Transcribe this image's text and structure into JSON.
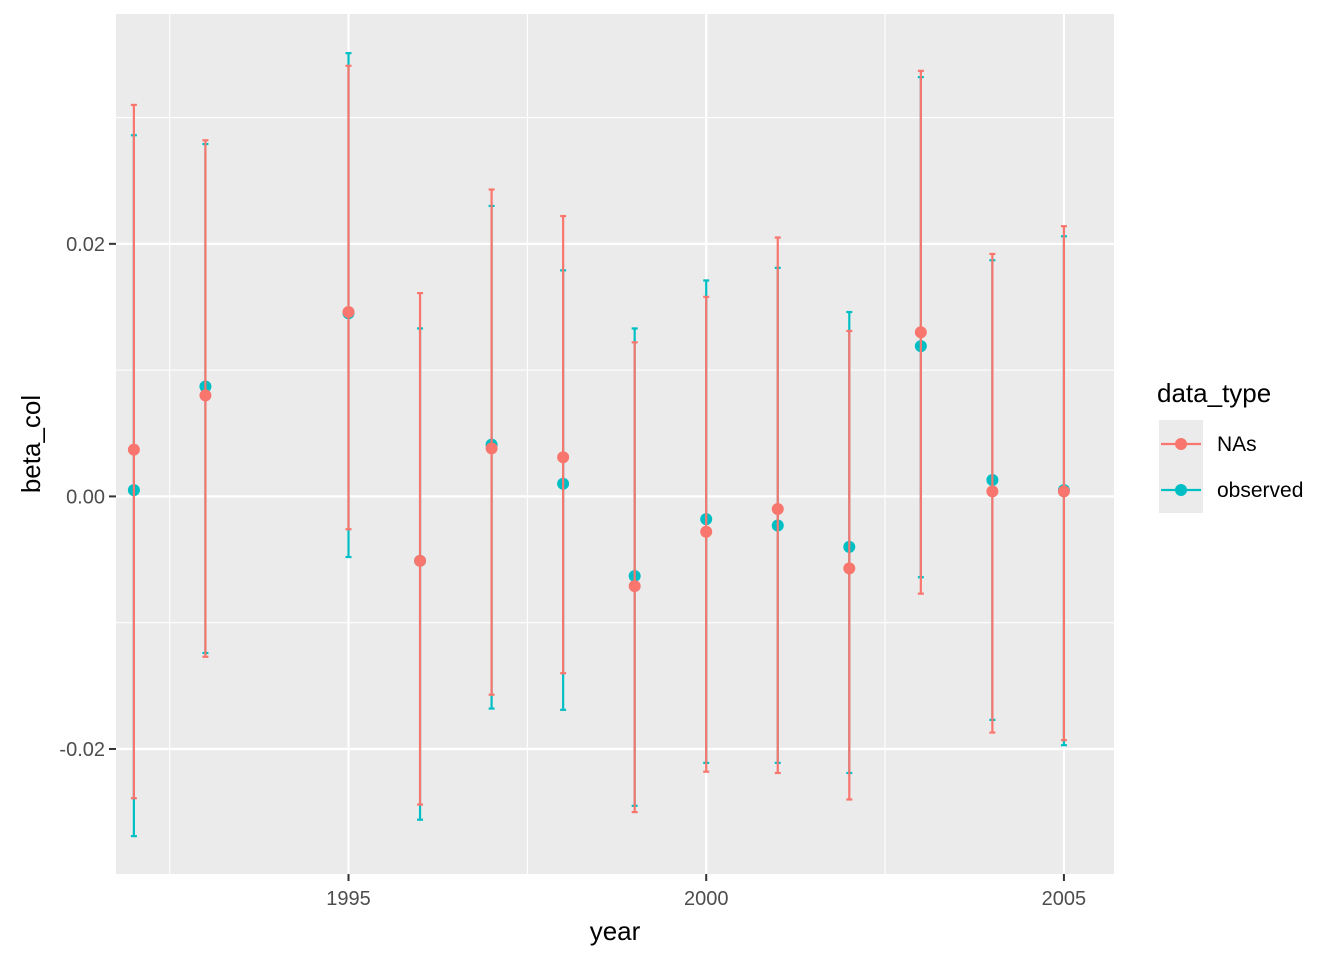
{
  "chart_data": {
    "type": "scatter",
    "title": "",
    "xlabel": "year",
    "ylabel": "beta_col",
    "xlim": [
      1991.75,
      2005.7
    ],
    "ylim": [
      -0.0299,
      0.0382
    ],
    "x_ticks": [
      1995,
      2000,
      2005
    ],
    "x_tick_labels": [
      "1995",
      "2000",
      "2005"
    ],
    "y_ticks": [
      -0.02,
      0.0,
      0.02
    ],
    "y_tick_labels": [
      "-0.02",
      "0.00",
      "0.02"
    ],
    "grid": true,
    "legend": {
      "title": "data_type",
      "placement": "right",
      "entries": [
        "NAs",
        "observed"
      ]
    },
    "series": [
      {
        "name": "observed",
        "color": "#00BFC4",
        "points": [
          {
            "x": 1992,
            "y": 0.0005,
            "ymin": -0.0269,
            "ymax": 0.0286
          },
          {
            "x": 1993,
            "y": 0.0087,
            "ymin": -0.0124,
            "ymax": 0.0279
          },
          {
            "x": 1995,
            "y": 0.0145,
            "ymin": -0.0048,
            "ymax": 0.0351
          },
          {
            "x": 1996,
            "y": -0.0051,
            "ymin": -0.0256,
            "ymax": 0.0133
          },
          {
            "x": 1997,
            "y": 0.0041,
            "ymin": -0.0168,
            "ymax": 0.023
          },
          {
            "x": 1998,
            "y": 0.001,
            "ymin": -0.0169,
            "ymax": 0.0179
          },
          {
            "x": 1999,
            "y": -0.0063,
            "ymin": -0.0245,
            "ymax": 0.0133
          },
          {
            "x": 2000,
            "y": -0.0018,
            "ymin": -0.0211,
            "ymax": 0.0171
          },
          {
            "x": 2001,
            "y": -0.0023,
            "ymin": -0.0211,
            "ymax": 0.0181
          },
          {
            "x": 2002,
            "y": -0.004,
            "ymin": -0.0219,
            "ymax": 0.0146
          },
          {
            "x": 2003,
            "y": 0.0119,
            "ymin": -0.0064,
            "ymax": 0.0332
          },
          {
            "x": 2004,
            "y": 0.0013,
            "ymin": -0.0177,
            "ymax": 0.0187
          },
          {
            "x": 2005,
            "y": 0.0005,
            "ymin": -0.0197,
            "ymax": 0.0206
          }
        ]
      },
      {
        "name": "NAs",
        "color": "#F8766D",
        "points": [
          {
            "x": 1992,
            "y": 0.0037,
            "ymin": -0.0239,
            "ymax": 0.031
          },
          {
            "x": 1993,
            "y": 0.008,
            "ymin": -0.0127,
            "ymax": 0.0282
          },
          {
            "x": 1995,
            "y": 0.0146,
            "ymin": -0.0026,
            "ymax": 0.0341
          },
          {
            "x": 1996,
            "y": -0.0051,
            "ymin": -0.0244,
            "ymax": 0.0161
          },
          {
            "x": 1997,
            "y": 0.0038,
            "ymin": -0.0157,
            "ymax": 0.0243
          },
          {
            "x": 1998,
            "y": 0.0031,
            "ymin": -0.014,
            "ymax": 0.0222
          },
          {
            "x": 1999,
            "y": -0.0071,
            "ymin": -0.025,
            "ymax": 0.0122
          },
          {
            "x": 2000,
            "y": -0.0028,
            "ymin": -0.0218,
            "ymax": 0.0158
          },
          {
            "x": 2001,
            "y": -0.001,
            "ymin": -0.0219,
            "ymax": 0.0205
          },
          {
            "x": 2002,
            "y": -0.0057,
            "ymin": -0.024,
            "ymax": 0.0131
          },
          {
            "x": 2003,
            "y": 0.013,
            "ymin": -0.0077,
            "ymax": 0.0337
          },
          {
            "x": 2004,
            "y": 0.0004,
            "ymin": -0.0187,
            "ymax": 0.0192
          },
          {
            "x": 2005,
            "y": 0.0004,
            "ymin": -0.0193,
            "ymax": 0.0214
          }
        ]
      }
    ]
  }
}
